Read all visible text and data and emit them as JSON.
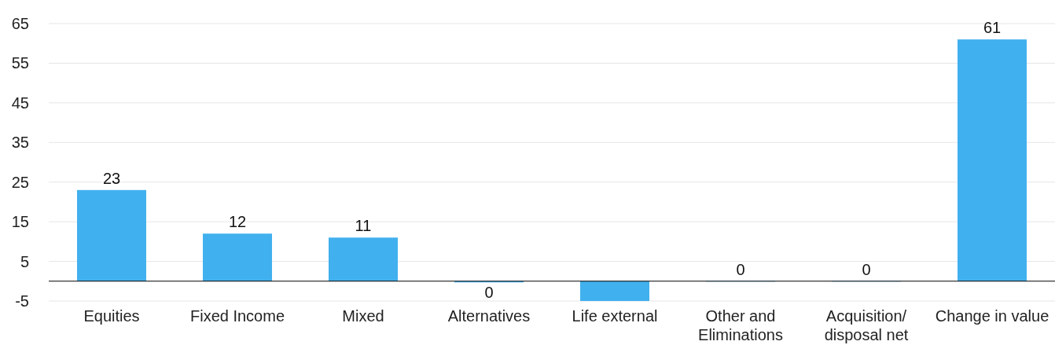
{
  "chart_data": {
    "type": "bar",
    "categories": [
      "Equities",
      "Fixed Income",
      "Mixed",
      "Alternatives",
      "Life external",
      "Other and Eliminations",
      "Acquisition/ disposal net",
      "Change in value"
    ],
    "values": [
      23,
      12,
      11,
      -0.3,
      -5,
      0,
      0,
      61
    ],
    "value_labels": [
      "23",
      "12",
      "11",
      "0",
      null,
      "0",
      "0",
      "61"
    ],
    "color": "#41b0ee",
    "ylim": [
      -5,
      65
    ],
    "yticks": [
      -5,
      5,
      15,
      25,
      35,
      45,
      55,
      65
    ],
    "grid": "y"
  }
}
